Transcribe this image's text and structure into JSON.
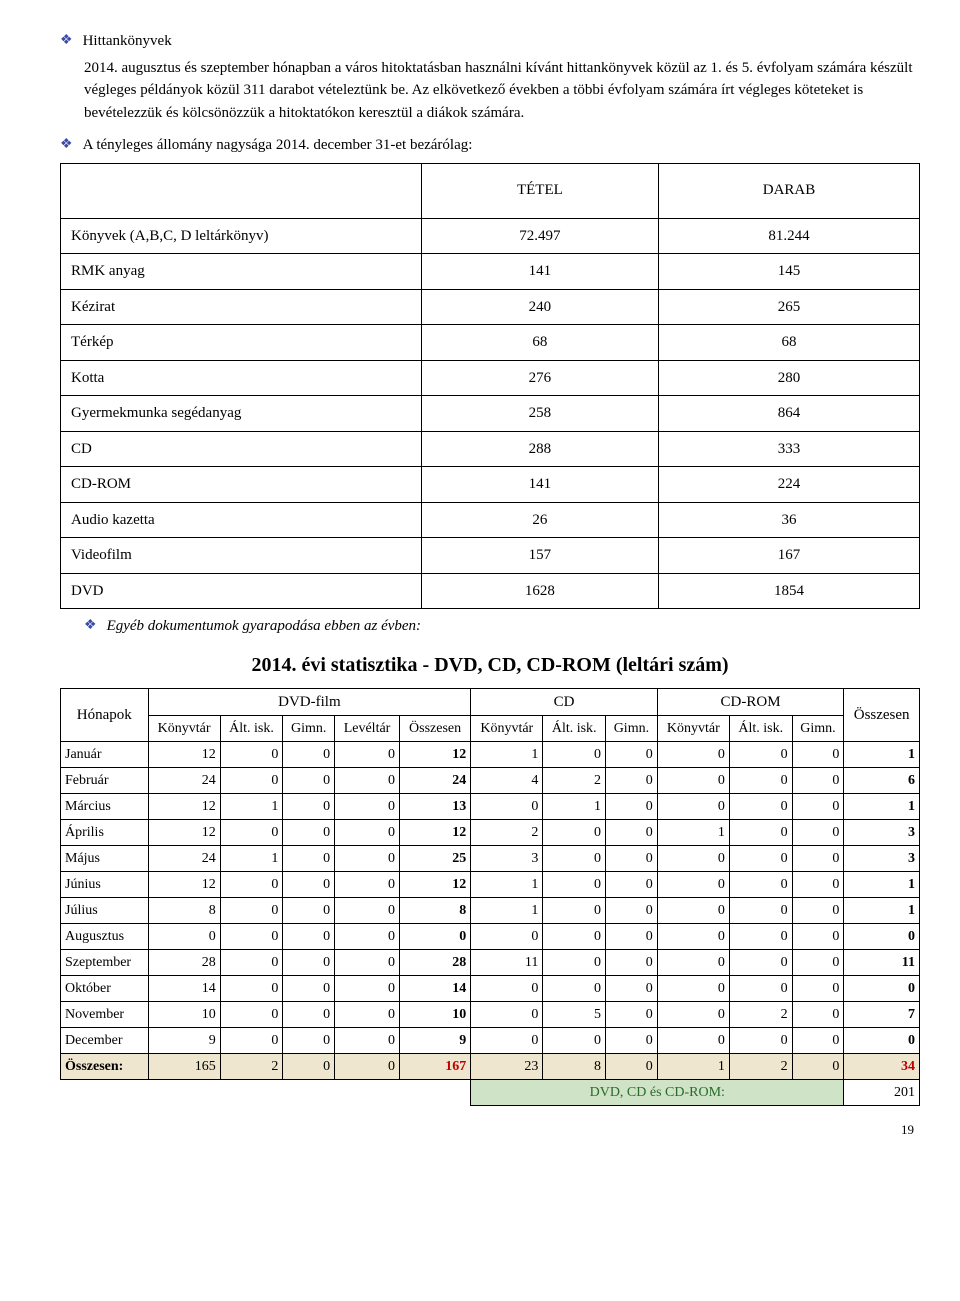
{
  "bullets": {
    "b1_title": "Hittankönyvek",
    "b1_para": "2014. augusztus és szeptember hónapban a város hitoktatásban használni kívánt hittankönyvek közül az 1. és 5. évfolyam számára készült végleges példányok közül 311 darabot vételeztünk be. Az elkövetkező években a többi évfolyam számára írt végleges köteteket is bevételezzük és kölcsönözzük a hitoktatókon keresztül a diákok számára.",
    "b2_text": "A tényleges állomány nagysága 2014. december 31-et bezárólag:",
    "b3_text": "Egyéb dokumentumok gyarapodása ebben az évben:"
  },
  "inventory": {
    "headers": [
      "",
      "TÉTEL",
      "DARAB"
    ],
    "rows": [
      [
        "Könyvek (A,B,C, D leltárkönyv)",
        "72.497",
        "81.244"
      ],
      [
        "RMK anyag",
        "141",
        "145"
      ],
      [
        "Kézirat",
        "240",
        "265"
      ],
      [
        "Térkép",
        "68",
        "68"
      ],
      [
        "Kotta",
        "276",
        "280"
      ],
      [
        "Gyermekmunka segédanyag",
        "258",
        "864"
      ],
      [
        "CD",
        "288",
        "333"
      ],
      [
        "CD-ROM",
        "141",
        "224"
      ],
      [
        "Audio kazetta",
        "26",
        "36"
      ],
      [
        "Videofilm",
        "157",
        "167"
      ],
      [
        "DVD",
        "1628",
        "1854"
      ]
    ]
  },
  "stats": {
    "title": "2014. évi statisztika - DVD, CD, CD-ROM (leltári szám)",
    "group_headers": [
      "DVD-film",
      "CD",
      "CD-ROM"
    ],
    "col_headers": [
      "Hónapok",
      "Könyvtár",
      "Ált. isk.",
      "Gimn.",
      "Levéltár",
      "Összesen",
      "Könyvtár",
      "Ált. isk.",
      "Gimn.",
      "Könyvtár",
      "Ált. isk.",
      "Gimn.",
      "Összesen"
    ],
    "rows": [
      [
        "Január",
        12,
        0,
        0,
        0,
        12,
        1,
        0,
        0,
        0,
        0,
        0,
        1
      ],
      [
        "Február",
        24,
        0,
        0,
        0,
        24,
        4,
        2,
        0,
        0,
        0,
        0,
        6
      ],
      [
        "Március",
        12,
        1,
        0,
        0,
        13,
        0,
        1,
        0,
        0,
        0,
        0,
        1
      ],
      [
        "Április",
        12,
        0,
        0,
        0,
        12,
        2,
        0,
        0,
        1,
        0,
        0,
        3
      ],
      [
        "Május",
        24,
        1,
        0,
        0,
        25,
        3,
        0,
        0,
        0,
        0,
        0,
        3
      ],
      [
        "Június",
        12,
        0,
        0,
        0,
        12,
        1,
        0,
        0,
        0,
        0,
        0,
        1
      ],
      [
        "Július",
        8,
        0,
        0,
        0,
        8,
        1,
        0,
        0,
        0,
        0,
        0,
        1
      ],
      [
        "Augusztus",
        0,
        0,
        0,
        0,
        0,
        0,
        0,
        0,
        0,
        0,
        0,
        0
      ],
      [
        "Szeptember",
        28,
        0,
        0,
        0,
        28,
        11,
        0,
        0,
        0,
        0,
        0,
        11
      ],
      [
        "Október",
        14,
        0,
        0,
        0,
        14,
        0,
        0,
        0,
        0,
        0,
        0,
        0
      ],
      [
        "November",
        10,
        0,
        0,
        0,
        10,
        0,
        5,
        0,
        0,
        2,
        0,
        7
      ],
      [
        "December",
        9,
        0,
        0,
        0,
        9,
        0,
        0,
        0,
        0,
        0,
        0,
        0
      ]
    ],
    "total": [
      "Összesen:",
      165,
      2,
      0,
      0,
      167,
      23,
      8,
      0,
      1,
      2,
      0,
      34
    ],
    "final_label": "DVD, CD és CD-ROM:",
    "final_value": 201
  },
  "page_number": "19"
}
